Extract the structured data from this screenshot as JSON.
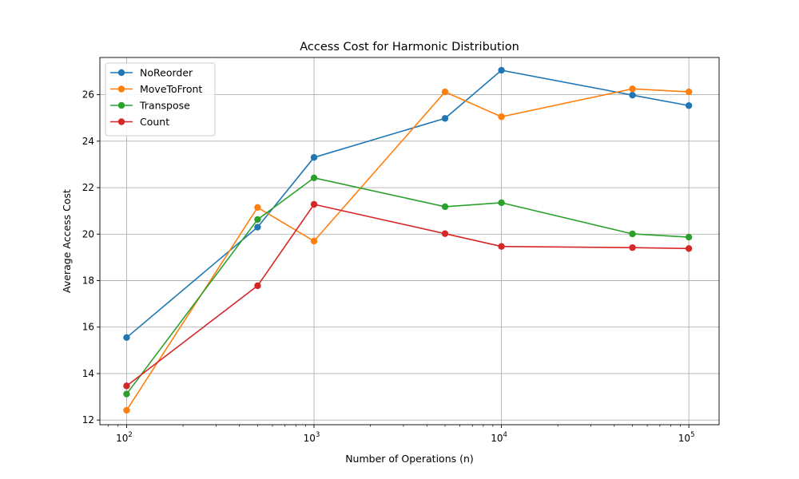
{
  "chart_data": {
    "type": "line",
    "title": "Access Cost for Harmonic Distribution",
    "xlabel": "Number of Operations (n)",
    "ylabel": "Average Access Cost",
    "xscale": "log",
    "xlim": [
      72,
      145000
    ],
    "ylim": [
      11.8,
      27.6
    ],
    "x": [
      100,
      500,
      1000,
      5000,
      10000,
      50000,
      100000
    ],
    "xticks": [
      {
        "value": 100,
        "base": "10",
        "exp": "2"
      },
      {
        "value": 1000,
        "base": "10",
        "exp": "3"
      },
      {
        "value": 10000,
        "base": "10",
        "exp": "4"
      },
      {
        "value": 100000,
        "base": "10",
        "exp": "5"
      }
    ],
    "yticks": [
      12,
      14,
      16,
      18,
      20,
      22,
      24,
      26
    ],
    "grid": true,
    "legend_position": "top-left",
    "series": [
      {
        "name": "NoReorder",
        "color": "#1f77b4",
        "values": [
          15.55,
          20.3,
          23.3,
          24.98,
          27.05,
          25.98,
          25.53
        ]
      },
      {
        "name": "MoveToFront",
        "color": "#ff7f0e",
        "values": [
          12.42,
          21.15,
          19.7,
          26.12,
          25.05,
          26.25,
          26.12
        ]
      },
      {
        "name": "Transpose",
        "color": "#2ca02c",
        "values": [
          13.12,
          20.63,
          22.42,
          21.18,
          21.35,
          20.01,
          19.87
        ]
      },
      {
        "name": "Count",
        "color": "#d62728",
        "values": [
          13.47,
          17.78,
          21.28,
          20.02,
          19.47,
          19.42,
          19.38
        ]
      }
    ]
  }
}
